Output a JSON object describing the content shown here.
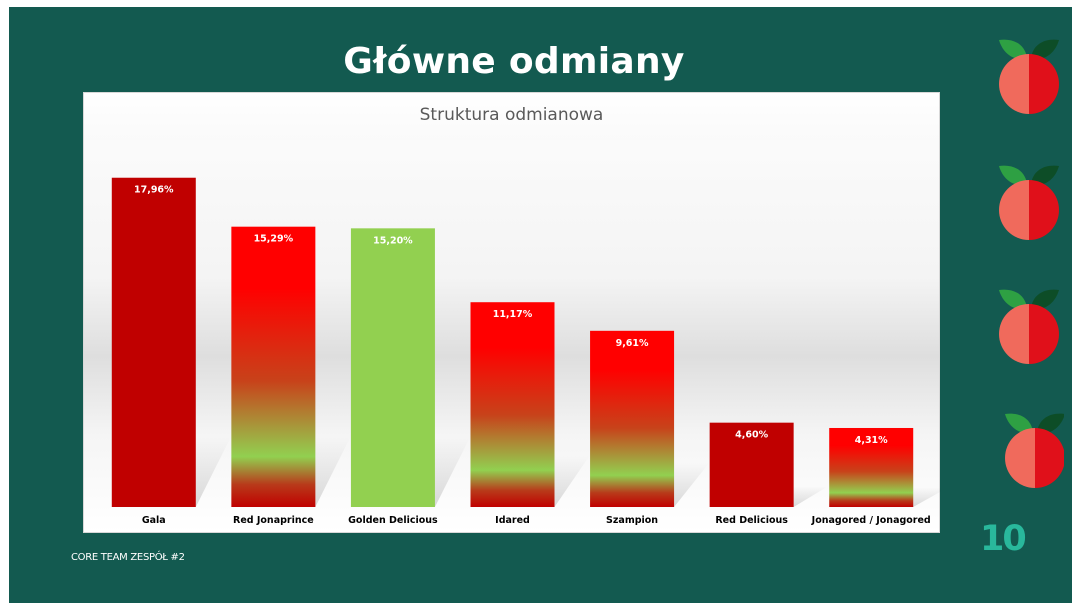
{
  "slide": {
    "title": "Główne odmiany",
    "footer": "CORE TEAM ZESPÓŁ #2",
    "page_number": "10",
    "background_color": "#135a50",
    "page_number_color": "#29b89c"
  },
  "chart_data": {
    "type": "bar",
    "title": "Struktura odmianowa",
    "categories": [
      "Gala",
      "Red Jonaprince",
      "Golden Delicious",
      "Idared",
      "Szampion",
      "Red Delicious",
      "Jonagored / Jonagored"
    ],
    "values": [
      17.96,
      15.29,
      15.2,
      11.17,
      9.61,
      4.6,
      4.31
    ],
    "data_labels": [
      "17,96%",
      "15,29%",
      "15,20%",
      "11,17%",
      "9,61%",
      "4,60%",
      "4,31%"
    ],
    "bar_fills": [
      "solid-dark-red",
      "gradient-red-green",
      "solid-light-green",
      "gradient-red-green",
      "gradient-red-green",
      "solid-dark-red",
      "gradient-red-green"
    ],
    "colors": {
      "dark_red": "#c00000",
      "red": "#ff0000",
      "green": "#92d050"
    },
    "ylim": [
      0,
      18
    ],
    "grid": false,
    "legend": "none"
  }
}
